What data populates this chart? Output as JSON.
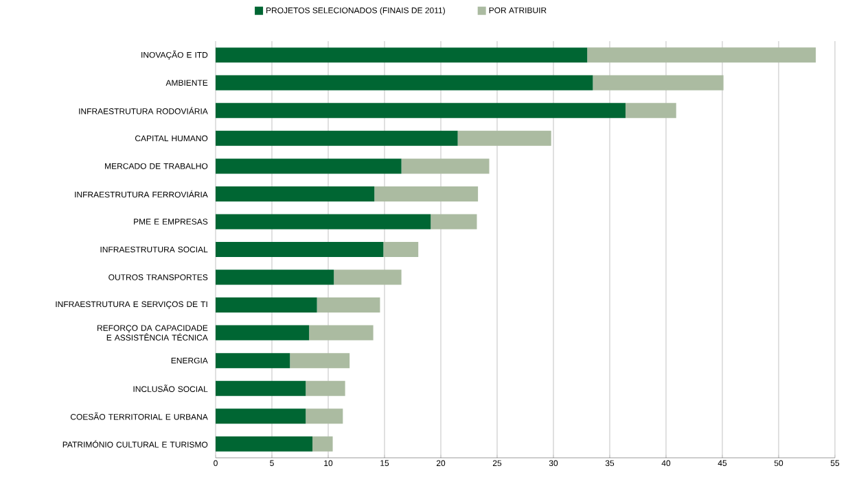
{
  "chart_data": {
    "type": "bar",
    "orientation": "horizontal",
    "stacked": true,
    "categories": [
      "INOVAÇÃO E ITD",
      "AMBIENTE",
      "INFRAESTRUTURA RODOVIÁRIA",
      "CAPITAL HUMANO",
      "MERCADO DE TRABALHO",
      "INFRAESTRUTURA FERROVIÁRIA",
      "PME E EMPRESAS",
      "INFRAESTRUTURA SOCIAL",
      "OUTROS TRANSPORTES",
      "INFRAESTRUTURA E SERVIÇOS DE TI",
      "REFORÇO DA CAPACIDADE E ASSISTÊNCIA TÉCNICA",
      "ENERGIA",
      "INCLUSÃO SOCIAL",
      "COESÃO TERRITORIAL E URBANA",
      "PATRIMÓNIO CULTURAL E TURISMO"
    ],
    "series": [
      {
        "name": "PROJETOS SELECIONADOS (FINAIS DE 2011)",
        "color": "#006633",
        "values": [
          33.0,
          33.5,
          36.4,
          21.5,
          16.5,
          14.1,
          19.1,
          14.9,
          10.5,
          9.0,
          8.3,
          6.6,
          8.0,
          8.0,
          8.6
        ]
      },
      {
        "name": "POR ATRIBUIR",
        "color": "#abbba1",
        "values": [
          20.3,
          11.6,
          4.5,
          8.3,
          7.8,
          9.2,
          4.1,
          3.1,
          6.0,
          5.6,
          5.7,
          5.3,
          3.5,
          3.3,
          1.8
        ]
      }
    ],
    "xlim": [
      0,
      55
    ],
    "xticks": [
      0,
      5,
      10,
      15,
      20,
      25,
      30,
      35,
      40,
      45,
      50,
      55
    ],
    "grid": "x",
    "legend": "top"
  }
}
